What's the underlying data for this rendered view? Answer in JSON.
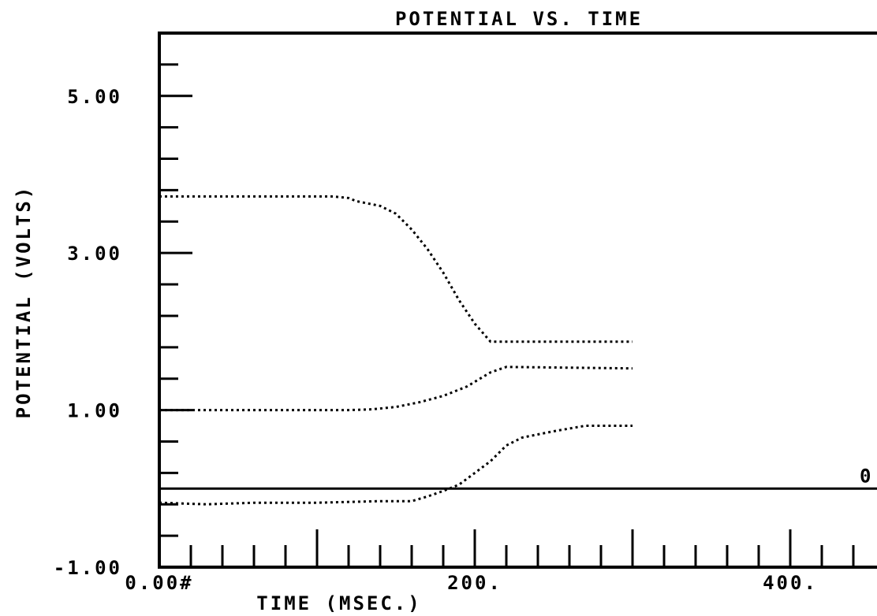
{
  "chart_data": {
    "type": "line",
    "title": "POTENTIAL VS. TIME",
    "xlabel": "TIME (MSEC.)",
    "ylabel": "POTENTIAL (VOLTS)",
    "xlim": [
      0,
      500
    ],
    "ylim": [
      -1.0,
      5.8
    ],
    "x_tick_labels": [
      {
        "value": 0,
        "label": "0.00#"
      },
      {
        "value": 200,
        "label": "200."
      },
      {
        "value": 400,
        "label": "400."
      }
    ],
    "y_tick_labels": [
      {
        "value": 5.0,
        "label": "5.00"
      },
      {
        "value": 3.0,
        "label": "3.00"
      },
      {
        "value": 1.0,
        "label": "1.00"
      },
      {
        "value": -1.0,
        "label": "-1.00"
      }
    ],
    "y_minor_step": 0.4,
    "x_minor_step": 20,
    "x_major_step": 100,
    "zero_line": {
      "value": 0,
      "label": "0"
    },
    "grid": false,
    "series": [
      {
        "style": "dotted",
        "x": [
          0,
          30,
          60,
          90,
          110,
          120,
          125,
          140,
          150,
          160,
          170,
          180,
          190,
          200,
          210,
          300
        ],
        "y": [
          3.72,
          3.72,
          3.72,
          3.72,
          3.72,
          3.7,
          3.66,
          3.6,
          3.5,
          3.3,
          3.05,
          2.75,
          2.4,
          2.1,
          1.87,
          1.87
        ]
      },
      {
        "style": "dotted",
        "x": [
          0,
          60,
          120,
          135,
          150,
          165,
          180,
          195,
          210,
          220,
          300
        ],
        "y": [
          1.0,
          1.0,
          1.0,
          1.01,
          1.04,
          1.1,
          1.18,
          1.3,
          1.48,
          1.55,
          1.53
        ]
      },
      {
        "style": "dotted",
        "x": [
          0,
          30,
          60,
          100,
          140,
          160,
          170,
          180,
          190,
          200,
          210,
          220,
          230,
          250,
          270,
          300
        ],
        "y": [
          -0.18,
          -0.2,
          -0.18,
          -0.18,
          -0.16,
          -0.16,
          -0.1,
          -0.03,
          0.05,
          0.2,
          0.35,
          0.55,
          0.65,
          0.73,
          0.8,
          0.8
        ]
      }
    ]
  }
}
